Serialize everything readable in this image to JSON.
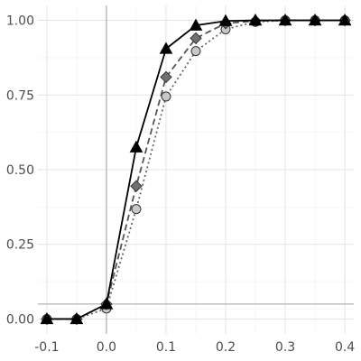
{
  "chart_data": {
    "type": "line",
    "title": "",
    "xlabel": "",
    "ylabel": "",
    "xlim": [
      -0.115,
      0.415
    ],
    "ylim": [
      -0.05,
      1.05
    ],
    "x_ticks": [
      -0.1,
      0.0,
      0.1,
      0.2,
      0.3,
      0.4
    ],
    "x_tick_labels": [
      "-0.1",
      "0.0",
      "0.1",
      "0.2",
      "0.3",
      "0.4"
    ],
    "y_ticks": [
      0.0,
      0.25,
      0.5,
      0.75,
      1.0
    ],
    "y_tick_labels": [
      "0.00",
      "0.25",
      "0.50",
      "0.75",
      "1.00"
    ],
    "grid": true,
    "reference_lines": {
      "vertical_x": 0.0,
      "horizontal_y": 0.05
    },
    "x": [
      -0.1,
      -0.05,
      0.0,
      0.05,
      0.1,
      0.15,
      0.2,
      0.25,
      0.3,
      0.35,
      0.4
    ],
    "series": [
      {
        "style": "solid",
        "marker": "triangle",
        "color": "#000000",
        "fill": "#000000",
        "values": [
          0.0,
          0.0,
          0.05,
          0.575,
          0.905,
          0.983,
          0.998,
          1.0,
          1.0,
          1.0,
          1.0
        ]
      },
      {
        "style": "dashed",
        "marker": "diamond",
        "color": "#555555",
        "fill": "#707070",
        "values": [
          0.0,
          0.0,
          0.05,
          0.445,
          0.81,
          0.94,
          0.99,
          0.998,
          1.0,
          1.0,
          1.0
        ]
      },
      {
        "style": "dotted",
        "marker": "circle",
        "color": "#666666",
        "fill": "#c8c8c8",
        "values": [
          0.0,
          0.0,
          0.035,
          0.368,
          0.745,
          0.897,
          0.97,
          0.995,
          1.0,
          1.0,
          1.0
        ]
      }
    ]
  }
}
